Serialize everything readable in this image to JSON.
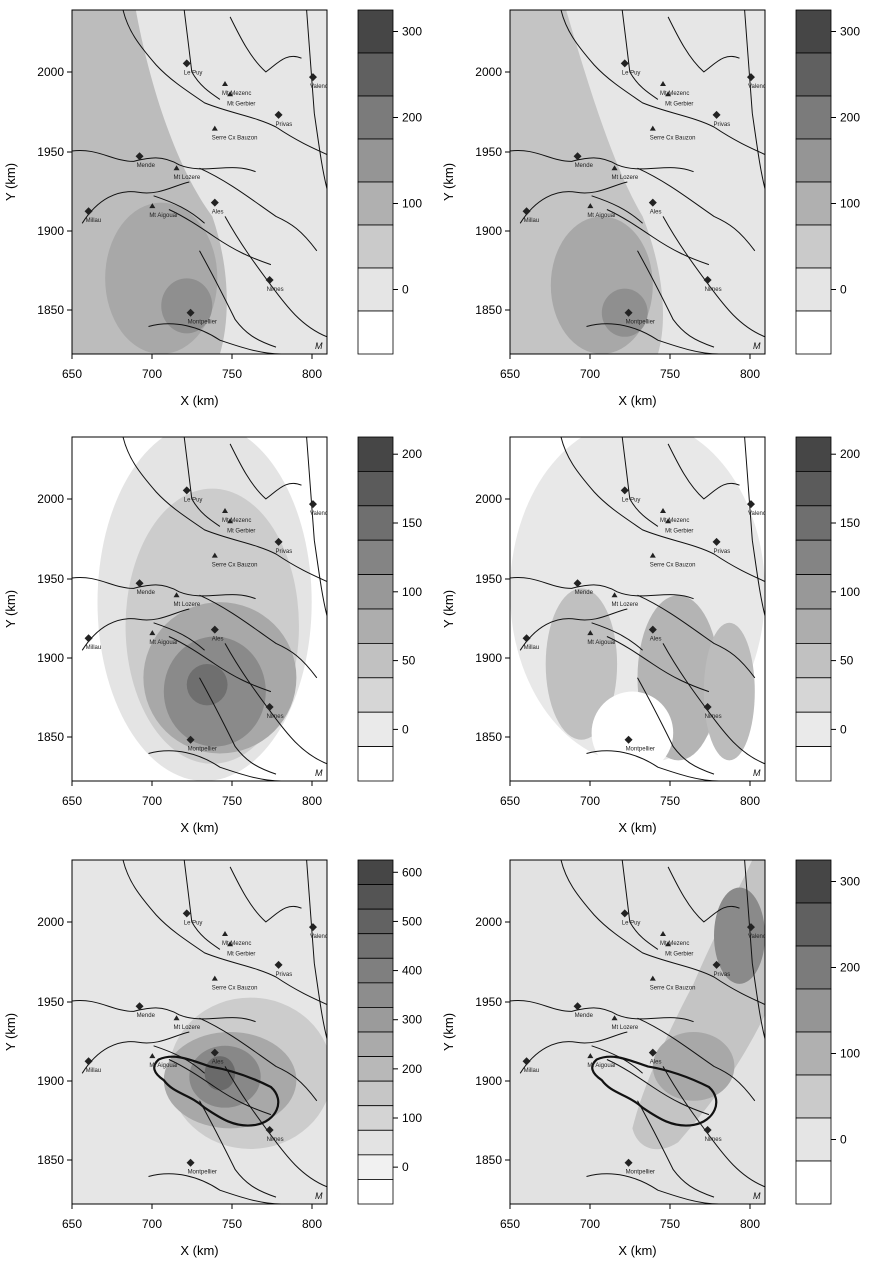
{
  "axis_labels": {
    "x": "X (km)",
    "y": "Y (km)"
  },
  "x_ticks": [
    "650",
    "700",
    "750",
    "800"
  ],
  "y_ticks": [
    "2000",
    "1950",
    "1900",
    "1850"
  ],
  "cities": [
    "Le Puy",
    "Mt Mezenc",
    "Mt Gerbier",
    "Valence",
    "Privas",
    "Serre Cx Bauzon",
    "Mende",
    "Mt Lozere",
    "Millau",
    "Mt Aigoual",
    "Ales",
    "Nimes",
    "Montpellier"
  ],
  "panels": [
    {
      "id": "top-left",
      "colorbar_ticks": [
        "300",
        "200",
        "100",
        "0"
      ]
    },
    {
      "id": "top-right",
      "colorbar_ticks": [
        "300",
        "200",
        "100",
        "0"
      ]
    },
    {
      "id": "middle-left",
      "colorbar_ticks": [
        "200",
        "150",
        "100",
        "50",
        "0"
      ]
    },
    {
      "id": "middle-right",
      "colorbar_ticks": [
        "200",
        "150",
        "100",
        "50",
        "0"
      ]
    },
    {
      "id": "bottom-left",
      "colorbar_ticks": [
        "600",
        "500",
        "400",
        "300",
        "200",
        "100",
        "0"
      ]
    },
    {
      "id": "bottom-right",
      "colorbar_ticks": [
        "300",
        "200",
        "100",
        "0"
      ]
    }
  ],
  "colors": {
    "river": "#111111",
    "marker": "#222222",
    "frame": "#000000"
  }
}
